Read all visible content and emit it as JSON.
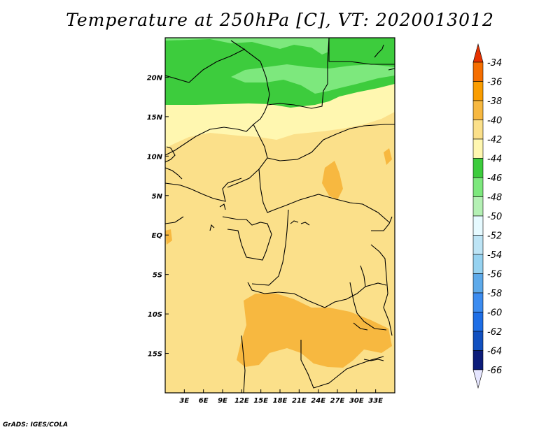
{
  "title": "Temperature at 250hPa [C], VT: 2020013012",
  "credit": "GrADS: IGES/COLA",
  "map": {
    "lon_range": [
      0,
      36
    ],
    "lat_range": [
      -20,
      25
    ],
    "lon_ticks": [
      "3E",
      "6E",
      "9E",
      "12E",
      "15E",
      "18E",
      "21E",
      "24E",
      "27E",
      "30E",
      "33E"
    ],
    "lat_ticks": [
      "20N",
      "15N",
      "10N",
      "5N",
      "EQ",
      "5S",
      "10S",
      "15S"
    ],
    "colors": {
      "c44_46": "#3dcc3d",
      "c46_48": "#7de87d",
      "c42_44": "#fff7b0",
      "c40_42": "#fbe08a",
      "c38_40": "#f7b840",
      "border": "#000000"
    }
  },
  "legend": {
    "labels": [
      "-34",
      "-36",
      "-38",
      "-40",
      "-42",
      "-44",
      "-46",
      "-48",
      "-50",
      "-52",
      "-54",
      "-56",
      "-58",
      "-60",
      "-62",
      "-64",
      "-66"
    ],
    "colors": [
      "#e63200",
      "#f56e00",
      "#fa9d00",
      "#f7b840",
      "#fbe08a",
      "#fff7b0",
      "#3dcc3d",
      "#7de87d",
      "#b4f0b4",
      "#e6faff",
      "#bde4f5",
      "#96d2f0",
      "#5eaaea",
      "#3c8cf0",
      "#1e6ee6",
      "#1150c0",
      "#0c1c7a"
    ],
    "top_color": "#e63200",
    "bottom_color": "#e6e6ff"
  }
}
